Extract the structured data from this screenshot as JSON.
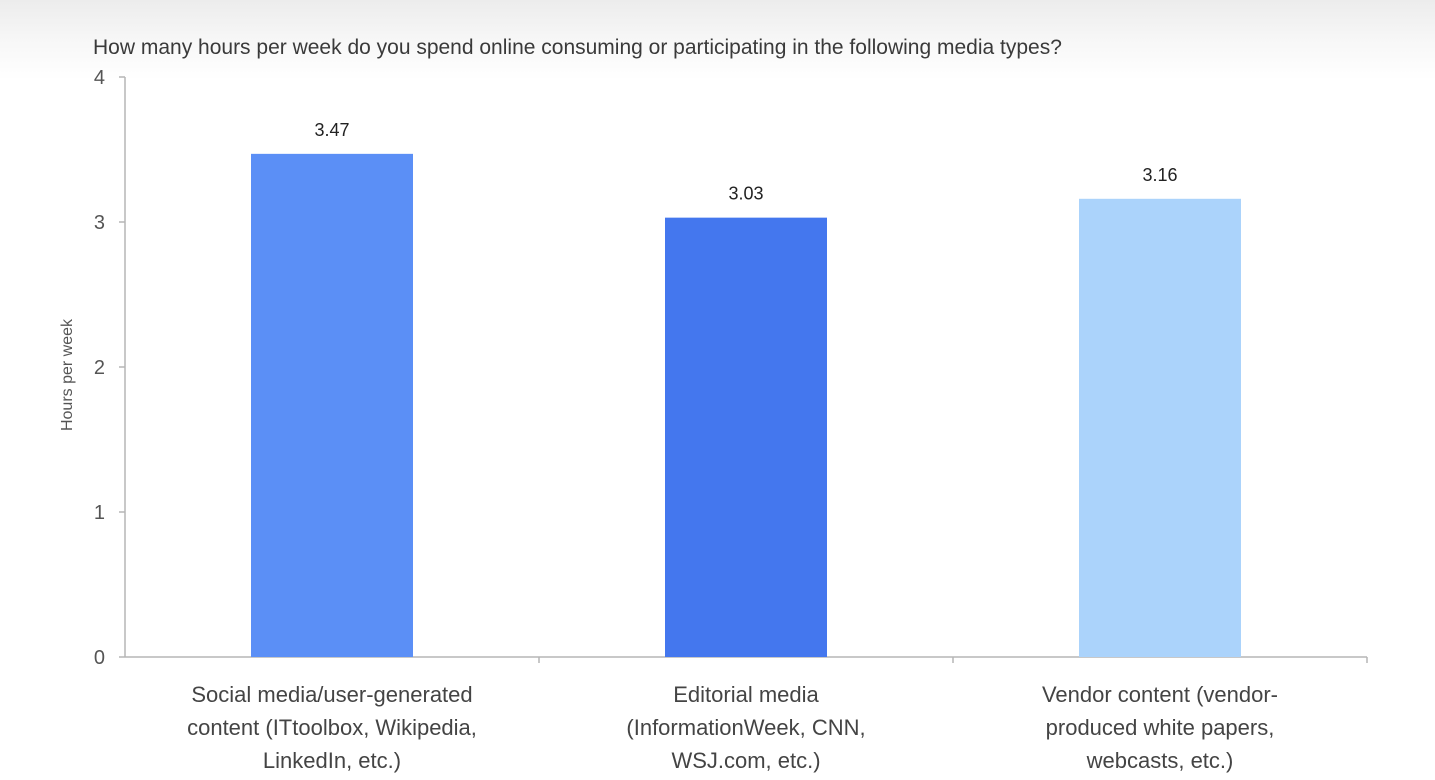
{
  "chart_data": {
    "type": "bar",
    "title": "How many hours per week do you spend online consuming or participating in the following media types?",
    "xlabel": "",
    "ylabel": "Hours per week",
    "ylim": [
      0,
      4
    ],
    "yticks": [
      "0",
      "1",
      "2",
      "3",
      "4"
    ],
    "grid": false,
    "categories": [
      [
        "Social media/user-generated",
        "content (ITtoolbox, Wikipedia,",
        "LinkedIn, etc.)"
      ],
      [
        "Editorial media",
        "(InformationWeek, CNN,",
        "WSJ.com, etc.)"
      ],
      [
        "Vendor content (vendor-",
        "produced white papers,",
        "webcasts, etc.)"
      ]
    ],
    "values": [
      3.47,
      3.03,
      3.16
    ],
    "value_labels": [
      "3.47",
      "3.03",
      "3.16"
    ],
    "bar_colors": [
      "#5b8ff6",
      "#4477ee",
      "#abd3fb"
    ]
  }
}
